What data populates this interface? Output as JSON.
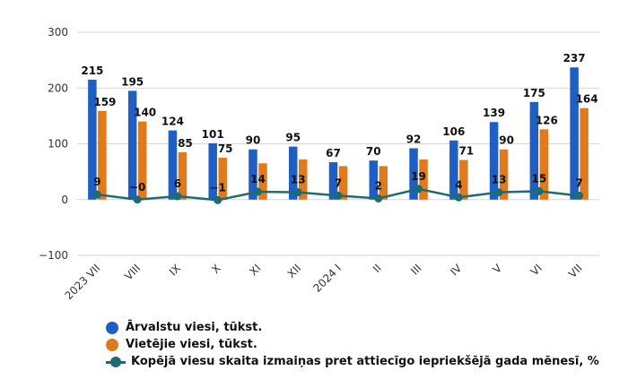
{
  "chart_data": {
    "type": "bar",
    "categories": [
      "2023 VII",
      "VIII",
      "IX",
      "X",
      "XI",
      "XII",
      "2024 I",
      "II",
      "III",
      "IV",
      "V",
      "VI",
      "VII"
    ],
    "series": [
      {
        "name": "Ārvalstu viesi, tūkst.",
        "type": "bar",
        "color": "#1f5fc4",
        "values": [
          215,
          195,
          124,
          101,
          90,
          95,
          67,
          70,
          92,
          106,
          139,
          175,
          237
        ]
      },
      {
        "name": "Vietējie viesi, tūkst.",
        "type": "bar",
        "color": "#e07a1c",
        "values": [
          159,
          140,
          85,
          75,
          65,
          72,
          60,
          60,
          72,
          71,
          90,
          126,
          164
        ],
        "labels": [
          "159",
          "140",
          "85",
          "75",
          "",
          "",
          "",
          "",
          "",
          "71",
          "90",
          "126",
          "164"
        ]
      },
      {
        "name": "Kopējā viesu skaita izmaiņas pret attiecīgo iepriekšējā gada mēnesī, %",
        "type": "line",
        "color": "#1e6b72",
        "values": [
          9,
          0,
          6,
          -1,
          14,
          13,
          7,
          2,
          19,
          4,
          13,
          15,
          7
        ],
        "labels": [
          "9",
          "−0",
          "6",
          "−1",
          "14",
          "13",
          "7",
          "2",
          "19",
          "4",
          "13",
          "15",
          "7"
        ]
      }
    ],
    "foreign_labels": [
      "215",
      "195",
      "124",
      "101",
      "90",
      "95",
      "67",
      "70",
      "92",
      "106",
      "139",
      "175",
      "237"
    ],
    "y_ticks": [
      "300",
      "200",
      "100",
      "0",
      "−100"
    ],
    "ylim": [
      -100,
      300
    ],
    "grid": true,
    "legend_position": "bottom-left"
  }
}
